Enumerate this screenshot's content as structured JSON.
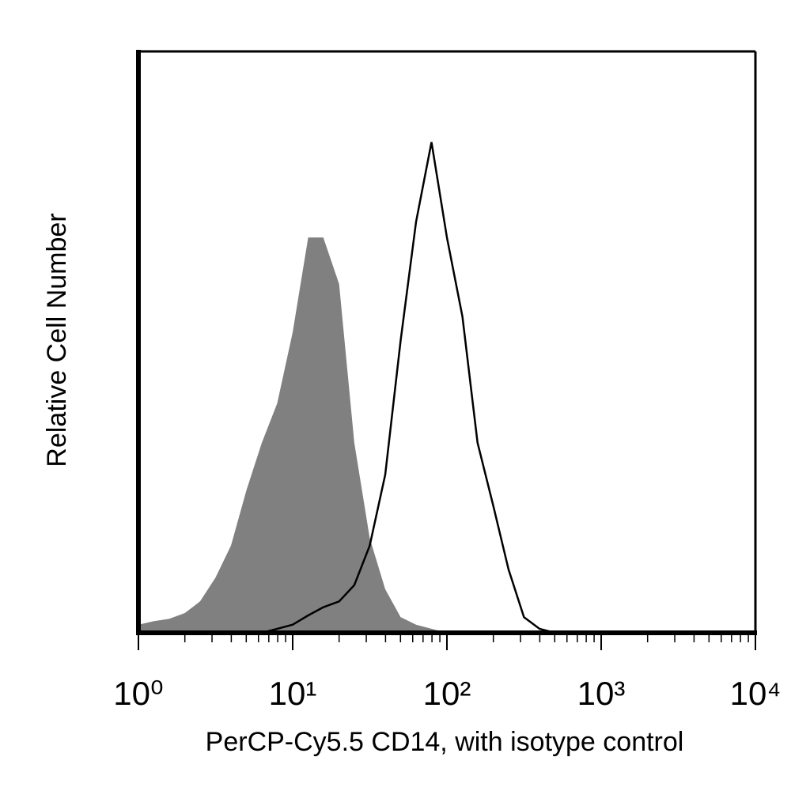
{
  "chart_data": {
    "type": "histogram",
    "xlabel": "PerCP-Cy5.5 CD14, with isotype control",
    "ylabel": "Relative Cell Number",
    "xscale": "log",
    "xlim": [
      1,
      10000
    ],
    "ylim": [
      0,
      100
    ],
    "xticks": [
      {
        "value": 1,
        "label": "10⁰"
      },
      {
        "value": 10,
        "label": "10¹"
      },
      {
        "value": 100,
        "label": "10²"
      },
      {
        "value": 1000,
        "label": "10³"
      },
      {
        "value": 10000,
        "label": "10⁴"
      }
    ],
    "xminorticks": [
      2,
      3,
      4,
      5,
      6,
      7,
      8,
      9,
      20,
      30,
      40,
      50,
      60,
      70,
      80,
      90,
      200,
      300,
      400,
      500,
      600,
      700,
      800,
      900,
      2000,
      3000,
      4000,
      5000,
      6000,
      7000,
      8000,
      9000
    ],
    "x": [
      1,
      1.26,
      1.58,
      2,
      2.51,
      3.16,
      3.98,
      5.01,
      6.31,
      7.94,
      10,
      12.6,
      15.8,
      20,
      25.1,
      31.6,
      39.8,
      50.1,
      63.1,
      79.4,
      100,
      126,
      158,
      200,
      251,
      316,
      398,
      501,
      631
    ],
    "series": [
      {
        "name": "isotype control",
        "color": "#808080",
        "fill": true,
        "values": [
          1.4,
          2,
          2.4,
          3.4,
          5.4,
          9.5,
          15,
          24.5,
          32.7,
          39.5,
          51.7,
          68,
          68,
          60,
          32.7,
          16.3,
          7.5,
          2.7,
          1.4,
          0.7,
          0,
          0,
          0,
          0,
          0,
          0,
          0,
          0,
          0
        ]
      },
      {
        "name": "CD14",
        "color": "#000000",
        "fill": false,
        "values": [
          0,
          0,
          0,
          0,
          0,
          0,
          0,
          0,
          0,
          0.7,
          1.4,
          3,
          4.4,
          5.4,
          8.2,
          15,
          27.2,
          50.3,
          70.7,
          84.4,
          68,
          54.4,
          32.7,
          21.8,
          10.9,
          2.7,
          0.7,
          0,
          0
        ]
      }
    ]
  }
}
